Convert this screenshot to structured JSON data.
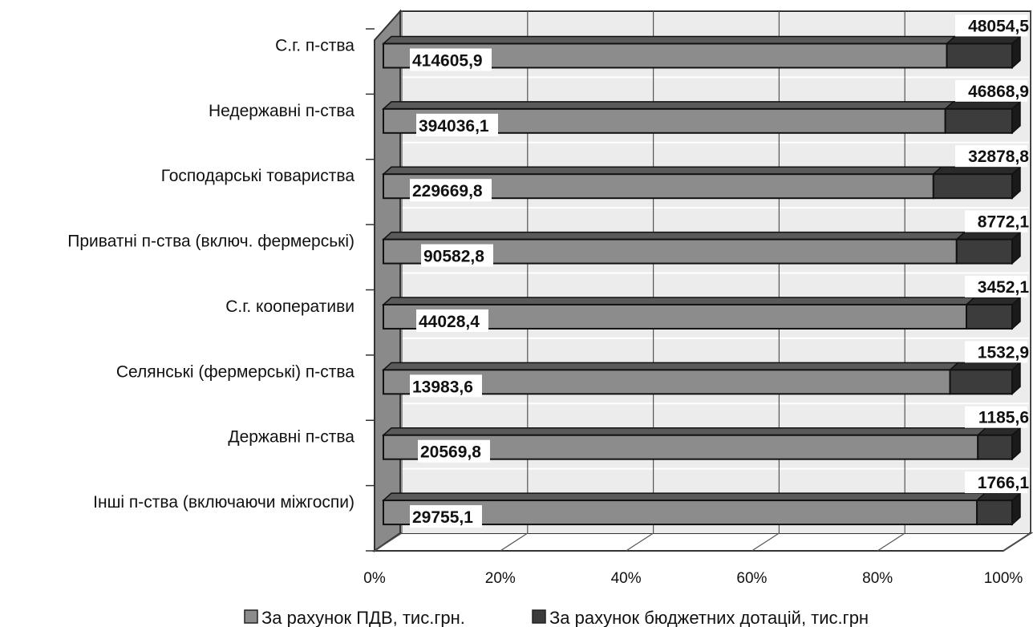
{
  "chart_data": {
    "type": "bar",
    "orientation": "horizontal",
    "stacked": "percent",
    "categories": [
      "С.г. п-ства",
      "Недержавні п-ства",
      "Господарські товариства",
      "Приватні п-ства (включ. фермерські)",
      "С.г. кооперативи",
      "Селянські (фермерські) п-ства",
      "Державні п-ства",
      "Інші п-ства (включаючи міжгоспи)"
    ],
    "series": [
      {
        "name": "За рахунок ПДВ, тис.грн.",
        "values": [
          414605.9,
          394036.1,
          229669.8,
          90582.8,
          44028.4,
          13983.6,
          20569.8,
          29755.1
        ],
        "labels": [
          "414605,9",
          "394036,1",
          "229669,8",
          "90582,8",
          "44028,4",
          "13983,6",
          "20569,8",
          "29755,1"
        ],
        "color": "#8c8c8c"
      },
      {
        "name": "За рахунок бюджетних дотацій, тис.грн",
        "values": [
          48054.5,
          46868.9,
          32878.8,
          8772.1,
          3452.1,
          1532.9,
          1185.6,
          1766.1
        ],
        "labels": [
          "48054,5",
          "46868,9",
          "32878,8",
          "8772,1",
          "3452,1",
          "1532,9",
          "1185,6",
          "1766,1"
        ],
        "color": "#3c3c3c"
      }
    ],
    "xticks": [
      "0%",
      "20%",
      "40%",
      "60%",
      "80%",
      "100%"
    ],
    "xlim": [
      0,
      100
    ],
    "grid": true,
    "legend_position": "bottom",
    "title": "",
    "xlabel": "",
    "ylabel": ""
  }
}
